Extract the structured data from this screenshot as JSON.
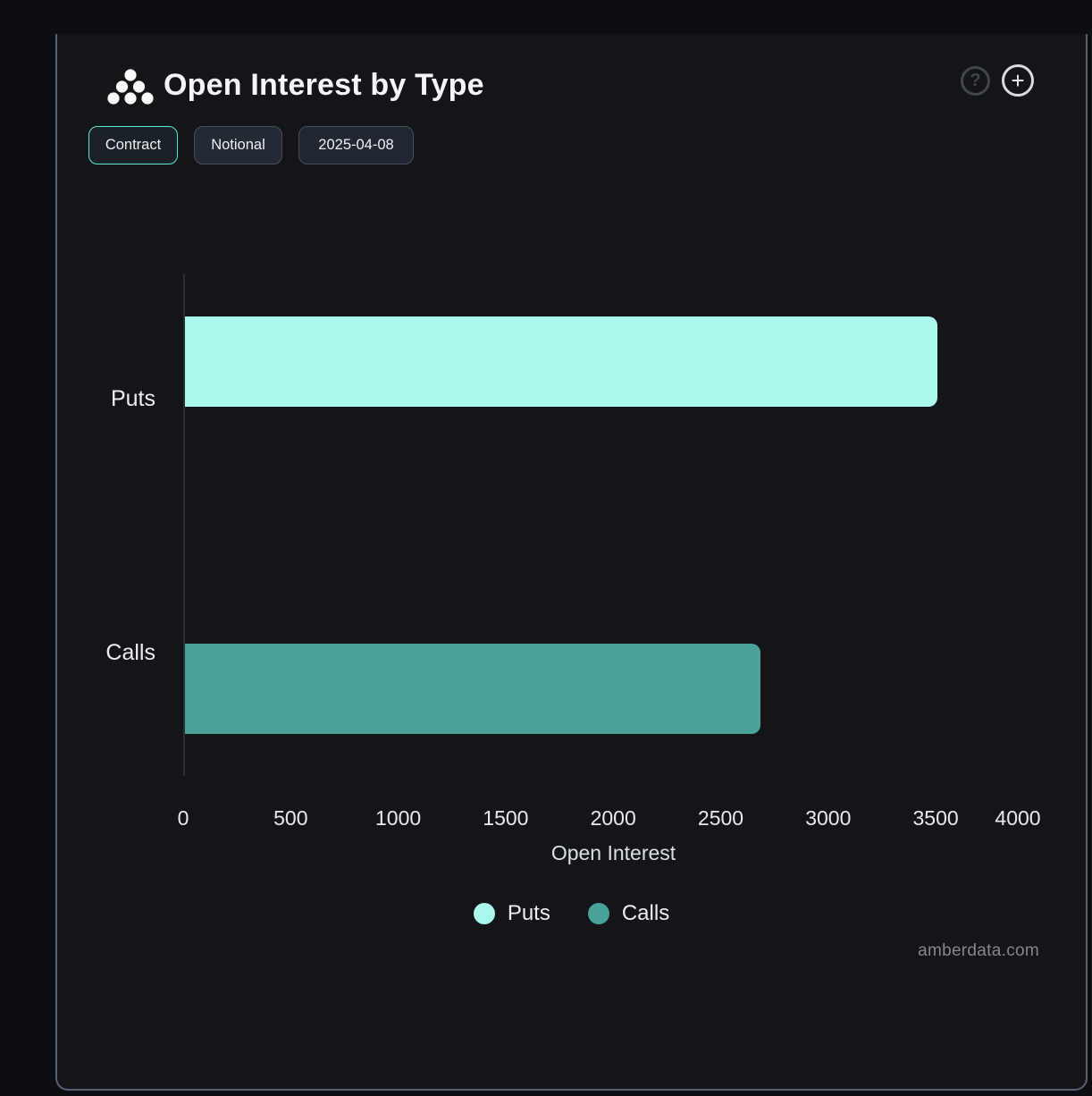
{
  "header": {
    "title": "Open Interest by Type",
    "icons": {
      "logo": "amberdata-logo",
      "help": "?",
      "add": "+"
    }
  },
  "toolbar": {
    "buttons": [
      {
        "label": "Contract",
        "active": true
      },
      {
        "label": "Notional",
        "active": false
      },
      {
        "label": "2025-04-08",
        "active": false
      }
    ]
  },
  "chart_data": {
    "type": "bar",
    "orientation": "horizontal",
    "title": "Open Interest by Type",
    "categories": [
      "Puts",
      "Calls"
    ],
    "series": [
      {
        "name": "Puts",
        "value": 3500,
        "color": "#a9f8eb"
      },
      {
        "name": "Calls",
        "value": 2675,
        "color": "#4aa29b"
      }
    ],
    "xlabel": "Open Interest",
    "xlim": [
      0,
      4000
    ],
    "xticks": [
      0,
      500,
      1000,
      1500,
      2000,
      2500,
      3000,
      3500,
      4000
    ],
    "grid": false,
    "legend": {
      "position": "bottom",
      "items": [
        {
          "label": "Puts",
          "color": "#a9f8eb"
        },
        {
          "label": "Calls",
          "color": "#4aa29b"
        }
      ]
    }
  },
  "watermark": "amberdata.com",
  "colors": {
    "background": "#0d0e11",
    "card_background": "#141519",
    "card_border": "#596070",
    "accent_mint": "#5be8cf",
    "puts": "#a9f8eb",
    "calls": "#4aa29b"
  }
}
